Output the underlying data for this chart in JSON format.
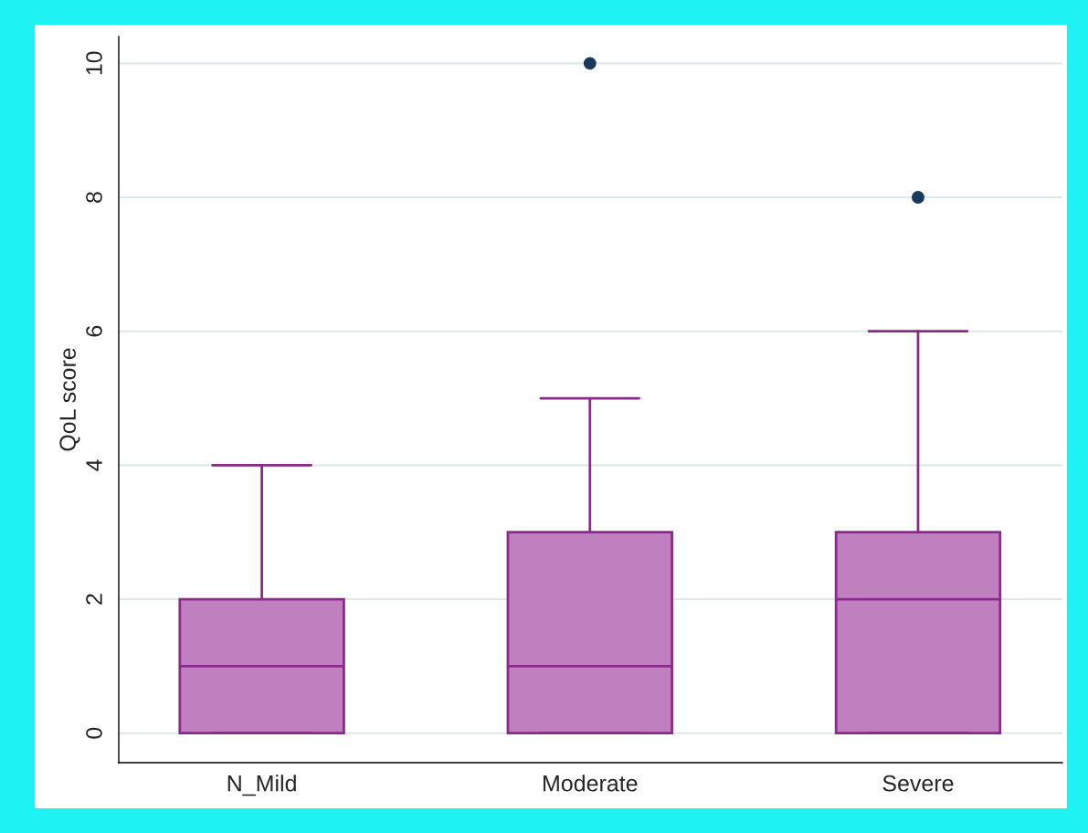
{
  "chart_data": {
    "type": "box",
    "ylabel": "QoL score",
    "categories": [
      "N_Mild",
      "Moderate",
      "Severe"
    ],
    "boxes": [
      {
        "low": 0,
        "q1": 0,
        "median": 1,
        "q3": 2,
        "high": 4
      },
      {
        "low": 0,
        "q1": 0,
        "median": 1,
        "q3": 3,
        "high": 5,
        "outliers": [
          10
        ]
      },
      {
        "low": 0,
        "q1": 0,
        "median": 2,
        "q3": 3,
        "high": 6,
        "outliers": [
          8
        ]
      }
    ],
    "color": "#c080c0",
    "ylim": [
      -0.44,
      10.4
    ],
    "yticks": [
      0,
      2,
      4,
      6,
      8,
      10
    ],
    "grid": "y"
  }
}
